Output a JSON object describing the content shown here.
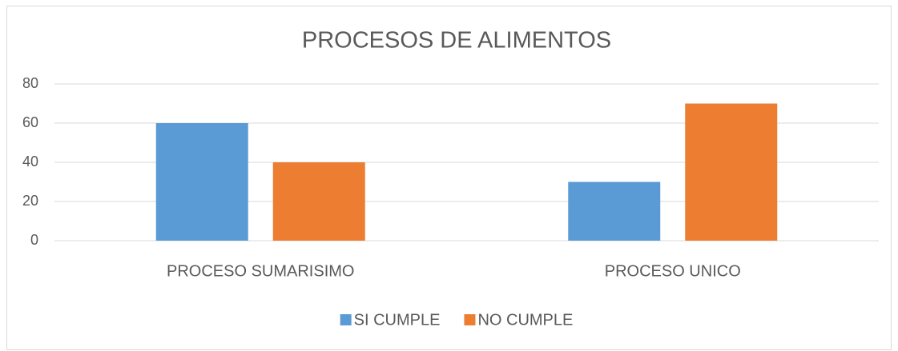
{
  "chart_data": {
    "type": "bar",
    "title": "PROCESOS DE ALIMENTOS",
    "categories": [
      "PROCESO SUMARISIMO",
      "PROCESO UNICO"
    ],
    "series": [
      {
        "name": "SI CUMPLE",
        "color": "#5b9bd5",
        "values": [
          60,
          30
        ]
      },
      {
        "name": "NO CUMPLE",
        "color": "#ed7d31",
        "values": [
          40,
          70
        ]
      }
    ],
    "ylim": [
      0,
      80
    ],
    "yticks": [
      0,
      20,
      40,
      60,
      80
    ],
    "grid": true,
    "legend": "bottom"
  }
}
